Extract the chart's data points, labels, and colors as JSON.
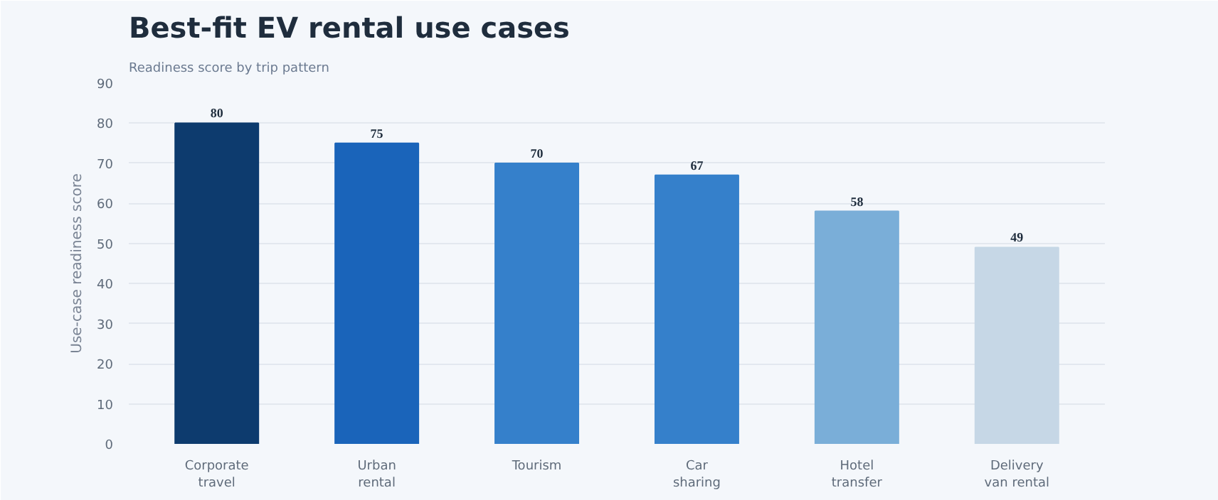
{
  "chart_data": {
    "type": "bar",
    "title": "Best-fit EV rental use cases",
    "subtitle": "Readiness score by trip pattern",
    "ylabel": "Use-case readiness score",
    "categories": [
      "Corporate\ntravel",
      "Urban\nrental",
      "Tourism",
      "Car\nsharing",
      "Hotel\ntransfer",
      "Delivery\nvan rental"
    ],
    "values": [
      80,
      75,
      70,
      67,
      58,
      49
    ],
    "colors": [
      "#0d3b6e",
      "#1a64ba",
      "#3580cb",
      "#3580cb",
      "#7aaed8",
      "#c6d7e6"
    ],
    "ylim": [
      0,
      90
    ],
    "yticks": [
      0,
      10,
      20,
      30,
      40,
      50,
      60,
      70,
      80,
      90
    ],
    "grid": "y",
    "data_labels": true
  }
}
